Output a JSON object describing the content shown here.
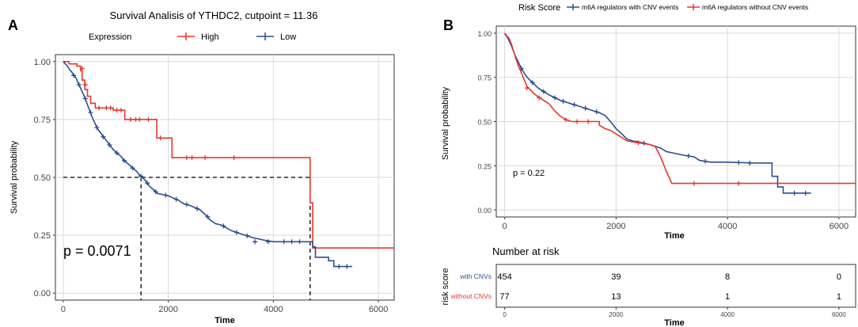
{
  "chart_data": [
    {
      "type": "line",
      "panel_label": "A",
      "title": "Survival Analisis of YTHDC2, cutpoint = 11.36",
      "xlabel": "Time",
      "ylabel": "Survival probability",
      "xlim": [
        -150,
        6300
      ],
      "ylim": [
        -0.03,
        1.03
      ],
      "x_ticks": [
        0,
        2000,
        4000,
        6000
      ],
      "y_ticks": [
        0.0,
        0.25,
        0.5,
        0.75,
        1.0
      ],
      "x_tick_labels": [
        "0",
        "2000",
        "4000",
        "6000"
      ],
      "y_tick_labels": [
        "0.00",
        "0.25",
        "0.50",
        "0.75",
        "1.00"
      ],
      "legend_title": "Expression",
      "legend_position": "top",
      "annotation": "p = 0.0071",
      "median_lines": [
        1480,
        4700
      ],
      "colors": {
        "high": "#e8352e",
        "low": "#2c4e8e",
        "grid": "#d9d9d9",
        "median": "#000000"
      },
      "series": [
        {
          "name": "High",
          "points": [
            [
              0,
              1.0
            ],
            [
              110,
              1.0
            ],
            [
              110,
              0.99
            ],
            [
              260,
              0.99
            ],
            [
              260,
              0.98
            ],
            [
              330,
              0.98
            ],
            [
              330,
              0.96
            ],
            [
              360,
              0.96
            ],
            [
              360,
              0.92
            ],
            [
              410,
              0.92
            ],
            [
              410,
              0.88
            ],
            [
              460,
              0.88
            ],
            [
              460,
              0.85
            ],
            [
              520,
              0.85
            ],
            [
              520,
              0.82
            ],
            [
              610,
              0.82
            ],
            [
              610,
              0.8
            ],
            [
              950,
              0.8
            ],
            [
              950,
              0.79
            ],
            [
              1170,
              0.79
            ],
            [
              1170,
              0.75
            ],
            [
              1780,
              0.75
            ],
            [
              1780,
              0.67
            ],
            [
              2070,
              0.67
            ],
            [
              2070,
              0.585
            ],
            [
              4700,
              0.585
            ],
            [
              4700,
              0.39
            ],
            [
              4750,
              0.39
            ],
            [
              4750,
              0.195
            ],
            [
              6300,
              0.195
            ]
          ],
          "censor": [
            [
              360,
              0.97
            ],
            [
              420,
              0.9
            ],
            [
              680,
              0.8
            ],
            [
              820,
              0.8
            ],
            [
              900,
              0.8
            ],
            [
              1020,
              0.79
            ],
            [
              1100,
              0.79
            ],
            [
              1280,
              0.75
            ],
            [
              1380,
              0.75
            ],
            [
              1450,
              0.75
            ],
            [
              1620,
              0.75
            ],
            [
              1850,
              0.67
            ],
            [
              2350,
              0.585
            ],
            [
              2450,
              0.585
            ],
            [
              2700,
              0.585
            ],
            [
              3250,
              0.585
            ]
          ]
        },
        {
          "name": "Low",
          "points": [
            [
              0,
              1.0
            ],
            [
              40,
              0.99
            ],
            [
              80,
              0.98
            ],
            [
              120,
              0.965
            ],
            [
              160,
              0.955
            ],
            [
              200,
              0.94
            ],
            [
              240,
              0.93
            ],
            [
              280,
              0.91
            ],
            [
              320,
              0.89
            ],
            [
              360,
              0.87
            ],
            [
              400,
              0.85
            ],
            [
              450,
              0.82
            ],
            [
              500,
              0.79
            ],
            [
              550,
              0.76
            ],
            [
              600,
              0.735
            ],
            [
              650,
              0.71
            ],
            [
              700,
              0.695
            ],
            [
              750,
              0.68
            ],
            [
              800,
              0.665
            ],
            [
              850,
              0.65
            ],
            [
              900,
              0.635
            ],
            [
              950,
              0.62
            ],
            [
              1000,
              0.61
            ],
            [
              1050,
              0.6
            ],
            [
              1100,
              0.59
            ],
            [
              1150,
              0.575
            ],
            [
              1200,
              0.565
            ],
            [
              1250,
              0.555
            ],
            [
              1300,
              0.545
            ],
            [
              1350,
              0.535
            ],
            [
              1400,
              0.525
            ],
            [
              1450,
              0.51
            ],
            [
              1500,
              0.5
            ],
            [
              1550,
              0.49
            ],
            [
              1600,
              0.475
            ],
            [
              1650,
              0.46
            ],
            [
              1700,
              0.45
            ],
            [
              1750,
              0.44
            ],
            [
              1800,
              0.43
            ],
            [
              1900,
              0.425
            ],
            [
              2000,
              0.42
            ],
            [
              2100,
              0.41
            ],
            [
              2200,
              0.4
            ],
            [
              2300,
              0.385
            ],
            [
              2400,
              0.38
            ],
            [
              2500,
              0.37
            ],
            [
              2600,
              0.36
            ],
            [
              2700,
              0.34
            ],
            [
              2800,
              0.315
            ],
            [
              2900,
              0.3
            ],
            [
              3000,
              0.295
            ],
            [
              3200,
              0.27
            ],
            [
              3400,
              0.255
            ],
            [
              3600,
              0.24
            ],
            [
              3800,
              0.23
            ],
            [
              4000,
              0.222
            ],
            [
              4750,
              0.222
            ],
            [
              4750,
              0.2
            ],
            [
              4800,
              0.2
            ],
            [
              4800,
              0.155
            ],
            [
              5050,
              0.155
            ],
            [
              5050,
              0.14
            ],
            [
              5150,
              0.14
            ],
            [
              5150,
              0.115
            ],
            [
              5500,
              0.115
            ]
          ],
          "censor": [
            [
              200,
              0.94
            ],
            [
              300,
              0.9
            ],
            [
              420,
              0.84
            ],
            [
              520,
              0.78
            ],
            [
              640,
              0.715
            ],
            [
              760,
              0.675
            ],
            [
              880,
              0.64
            ],
            [
              1020,
              0.605
            ],
            [
              1160,
              0.572
            ],
            [
              1320,
              0.54
            ],
            [
              1480,
              0.505
            ],
            [
              1600,
              0.475
            ],
            [
              1760,
              0.438
            ],
            [
              1950,
              0.423
            ],
            [
              2150,
              0.405
            ],
            [
              2350,
              0.383
            ],
            [
              2550,
              0.365
            ],
            [
              2750,
              0.33
            ],
            [
              3050,
              0.29
            ],
            [
              3300,
              0.262
            ],
            [
              3500,
              0.248
            ],
            [
              3650,
              0.222
            ],
            [
              3900,
              0.222
            ],
            [
              4200,
              0.222
            ],
            [
              4350,
              0.222
            ],
            [
              4500,
              0.222
            ],
            [
              5250,
              0.115
            ],
            [
              5400,
              0.115
            ]
          ]
        }
      ]
    },
    {
      "type": "line",
      "panel_label": "B",
      "xlabel": "Time",
      "ylabel": "Survival probability",
      "xlim": [
        -150,
        6300
      ],
      "ylim": [
        -0.04,
        1.04
      ],
      "x_ticks": [
        0,
        2000,
        4000,
        6000
      ],
      "y_ticks": [
        0.0,
        0.25,
        0.5,
        0.75,
        1.0
      ],
      "x_tick_labels": [
        "0",
        "2000",
        "4000",
        "6000"
      ],
      "y_tick_labels": [
        "0.00",
        "0.25",
        "0.50",
        "0.75",
        "1.00"
      ],
      "legend_title": "Risk Score",
      "legend_position": "top",
      "annotation": "p = 0.22",
      "colors": {
        "with": "#2c4e8e",
        "without": "#e8352e",
        "grid": "#d9d9d9"
      },
      "series": [
        {
          "name": "m6A regulators with CNV events",
          "points": [
            [
              0,
              1.0
            ],
            [
              60,
              0.97
            ],
            [
              120,
              0.93
            ],
            [
              180,
              0.88
            ],
            [
              240,
              0.84
            ],
            [
              300,
              0.8
            ],
            [
              360,
              0.77
            ],
            [
              420,
              0.745
            ],
            [
              500,
              0.72
            ],
            [
              600,
              0.69
            ],
            [
              700,
              0.67
            ],
            [
              800,
              0.65
            ],
            [
              900,
              0.635
            ],
            [
              1000,
              0.62
            ],
            [
              1100,
              0.61
            ],
            [
              1200,
              0.6
            ],
            [
              1300,
              0.59
            ],
            [
              1400,
              0.58
            ],
            [
              1500,
              0.57
            ],
            [
              1600,
              0.56
            ],
            [
              1700,
              0.55
            ],
            [
              1800,
              0.535
            ],
            [
              1900,
              0.5
            ],
            [
              2000,
              0.46
            ],
            [
              2100,
              0.43
            ],
            [
              2200,
              0.4
            ],
            [
              2300,
              0.39
            ],
            [
              2400,
              0.385
            ],
            [
              2600,
              0.37
            ],
            [
              2800,
              0.35
            ],
            [
              2900,
              0.33
            ],
            [
              3200,
              0.31
            ],
            [
              3400,
              0.3
            ],
            [
              3500,
              0.28
            ],
            [
              3700,
              0.27
            ],
            [
              4000,
              0.27
            ],
            [
              4500,
              0.265
            ],
            [
              4800,
              0.265
            ],
            [
              4800,
              0.19
            ],
            [
              4900,
              0.19
            ],
            [
              4900,
              0.13
            ],
            [
              5000,
              0.13
            ],
            [
              5000,
              0.095
            ],
            [
              5500,
              0.095
            ]
          ],
          "censor": [
            [
              300,
              0.8
            ],
            [
              500,
              0.72
            ],
            [
              700,
              0.67
            ],
            [
              900,
              0.635
            ],
            [
              1050,
              0.615
            ],
            [
              1250,
              0.595
            ],
            [
              1450,
              0.575
            ],
            [
              1650,
              0.555
            ],
            [
              2500,
              0.378
            ],
            [
              3300,
              0.305
            ],
            [
              3600,
              0.275
            ],
            [
              4200,
              0.268
            ],
            [
              4400,
              0.265
            ],
            [
              5200,
              0.095
            ],
            [
              5400,
              0.095
            ]
          ]
        },
        {
          "name": "m6A regulators without CNV events",
          "points": [
            [
              0,
              1.0
            ],
            [
              80,
              0.97
            ],
            [
              120,
              0.94
            ],
            [
              160,
              0.9
            ],
            [
              200,
              0.86
            ],
            [
              240,
              0.82
            ],
            [
              280,
              0.79
            ],
            [
              320,
              0.76
            ],
            [
              360,
              0.73
            ],
            [
              400,
              0.7
            ],
            [
              460,
              0.68
            ],
            [
              520,
              0.66
            ],
            [
              600,
              0.64
            ],
            [
              700,
              0.62
            ],
            [
              800,
              0.6
            ],
            [
              900,
              0.56
            ],
            [
              1000,
              0.53
            ],
            [
              1100,
              0.51
            ],
            [
              1200,
              0.5
            ],
            [
              1700,
              0.5
            ],
            [
              1700,
              0.48
            ],
            [
              1800,
              0.46
            ],
            [
              1900,
              0.45
            ],
            [
              2000,
              0.43
            ],
            [
              2200,
              0.39
            ],
            [
              2400,
              0.38
            ],
            [
              2600,
              0.37
            ],
            [
              2700,
              0.36
            ],
            [
              2800,
              0.3
            ],
            [
              2900,
              0.22
            ],
            [
              3000,
              0.15
            ],
            [
              6300,
              0.15
            ]
          ],
          "censor": [
            [
              400,
              0.69
            ],
            [
              620,
              0.635
            ],
            [
              1100,
              0.51
            ],
            [
              1300,
              0.5
            ],
            [
              1500,
              0.5
            ],
            [
              2400,
              0.38
            ],
            [
              3400,
              0.15
            ],
            [
              4200,
              0.15
            ]
          ]
        }
      ],
      "risk_table": {
        "title": "Number at risk",
        "ylabel": "risk score",
        "xlabel": "Time",
        "x_tick_labels": [
          "0",
          "2000",
          "4000",
          "6000"
        ],
        "times": [
          0,
          2000,
          4000,
          6000
        ],
        "rows": [
          {
            "label": "with CNVs",
            "values": [
              "454",
              "39",
              "8",
              "0"
            ]
          },
          {
            "label": "without CNVs",
            "values": [
              "77",
              "13",
              "1",
              "1"
            ]
          }
        ]
      }
    }
  ]
}
